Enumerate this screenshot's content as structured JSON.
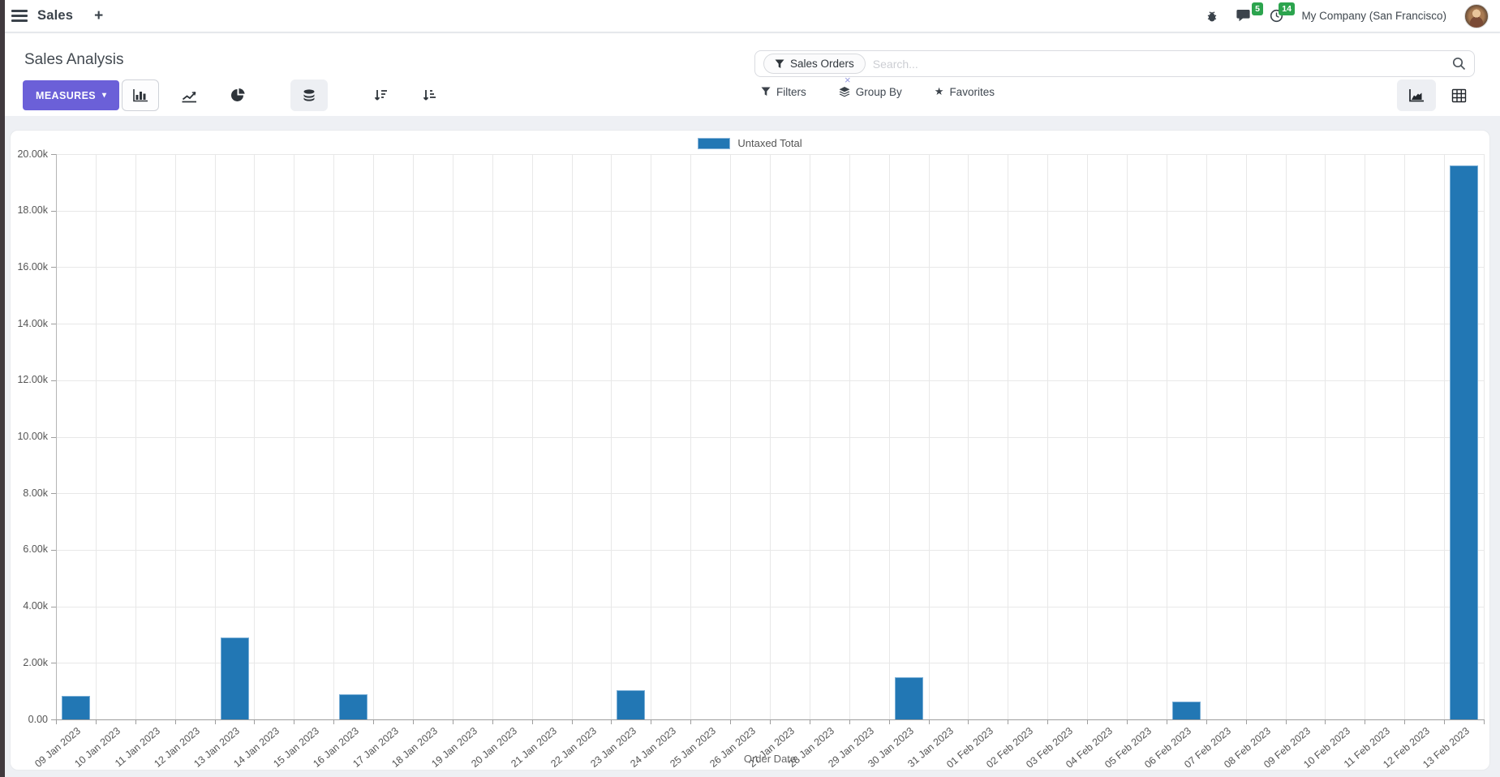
{
  "navbar": {
    "app_name": "Sales",
    "plus_label": "+",
    "badges": {
      "messages": "5",
      "activities": "14"
    },
    "company": "My Company (San Francisco)"
  },
  "control_panel": {
    "title": "Sales Analysis",
    "measures_label": "MEASURES",
    "measures_caret": "▾",
    "search": {
      "facet_label": "Sales Orders",
      "facet_remove": "×",
      "placeholder": "Search..."
    },
    "menus": {
      "filters": "Filters",
      "group_by": "Group By",
      "favorites": "Favorites"
    }
  },
  "icons": {
    "hamburger-icon": "three-bars",
    "plus-icon": "+",
    "bug-icon": "debug bug",
    "chat-icon": "speech bubble",
    "clock-icon": "clock",
    "bar-chart-icon": "bar chart",
    "line-chart-icon": "line chart",
    "pie-chart-icon": "pie chart",
    "stacked-icon": "database cylinder",
    "sort-desc-icon": "arrow down with descending lines",
    "sort-asc-icon": "arrow down with ascending lines",
    "filter-funnel-icon": "funnel",
    "group-by-icon": "stacked layers",
    "favorites-icon": "★",
    "search-icon": "magnifier",
    "area-view-icon": "area chart",
    "pivot-view-icon": "pivot grid"
  },
  "chart_data": {
    "type": "bar",
    "title": "Sales Analysis",
    "legend": [
      "Untaxed Total"
    ],
    "legend_position": "top",
    "grid": true,
    "xlabel": "Order Date",
    "ylabel": "",
    "ylim": [
      0,
      20000
    ],
    "ytick_step": 2000,
    "ytick_labels": [
      "0.00",
      "2.00k",
      "4.00k",
      "6.00k",
      "8.00k",
      "10.00k",
      "12.00k",
      "14.00k",
      "16.00k",
      "18.00k",
      "20.00k"
    ],
    "categories": [
      "09 Jan 2023",
      "10 Jan 2023",
      "11 Jan 2023",
      "12 Jan 2023",
      "13 Jan 2023",
      "14 Jan 2023",
      "15 Jan 2023",
      "16 Jan 2023",
      "17 Jan 2023",
      "18 Jan 2023",
      "19 Jan 2023",
      "20 Jan 2023",
      "21 Jan 2023",
      "22 Jan 2023",
      "23 Jan 2023",
      "24 Jan 2023",
      "25 Jan 2023",
      "26 Jan 2023",
      "27 Jan 2023",
      "28 Jan 2023",
      "29 Jan 2023",
      "30 Jan 2023",
      "31 Jan 2023",
      "01 Feb 2023",
      "02 Feb 2023",
      "03 Feb 2023",
      "04 Feb 2023",
      "05 Feb 2023",
      "06 Feb 2023",
      "07 Feb 2023",
      "08 Feb 2023",
      "09 Feb 2023",
      "10 Feb 2023",
      "11 Feb 2023",
      "12 Feb 2023",
      "13 Feb 2023"
    ],
    "series": [
      {
        "name": "Untaxed Total",
        "color": "#2277b4",
        "values": [
          830,
          0,
          0,
          0,
          2900,
          0,
          0,
          890,
          0,
          0,
          0,
          0,
          0,
          0,
          1030,
          0,
          0,
          0,
          0,
          0,
          0,
          1490,
          0,
          0,
          0,
          0,
          0,
          0,
          620,
          0,
          0,
          0,
          0,
          0,
          0,
          19600
        ]
      }
    ]
  },
  "colors": {
    "bar_fill": "#2277b4",
    "bar_border": "#79aed6",
    "measures_button": "#6b60d8",
    "badge_green": "#2ca44e",
    "page_background": "#eef0f4",
    "gridline": "#e8e8e8"
  }
}
